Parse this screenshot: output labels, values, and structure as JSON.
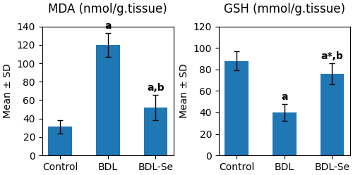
{
  "chart_data": [
    {
      "type": "bar",
      "title": "MDA (nmol/g.tissue)",
      "categories": [
        "Control",
        "BDL",
        "BDL-Se"
      ],
      "values": [
        31,
        120,
        52
      ],
      "errors": [
        7,
        13,
        14
      ],
      "annotations": [
        null,
        "a",
        "a,b"
      ],
      "ylabel": "Mean ± SD",
      "ylim": [
        0,
        140
      ],
      "yticks": [
        0,
        20,
        40,
        60,
        80,
        100,
        120,
        140
      ]
    },
    {
      "type": "bar",
      "title": "GSH (mmol/g.tissue)",
      "categories": [
        "Control",
        "BDL",
        "BDL-Se"
      ],
      "values": [
        88,
        40,
        76
      ],
      "errors": [
        9,
        8,
        10
      ],
      "annotations": [
        null,
        "a",
        "a*,b"
      ],
      "ylabel": "Mean ± SD",
      "ylim": [
        0,
        120
      ],
      "yticks": [
        0,
        20,
        40,
        60,
        80,
        100,
        120
      ]
    }
  ]
}
